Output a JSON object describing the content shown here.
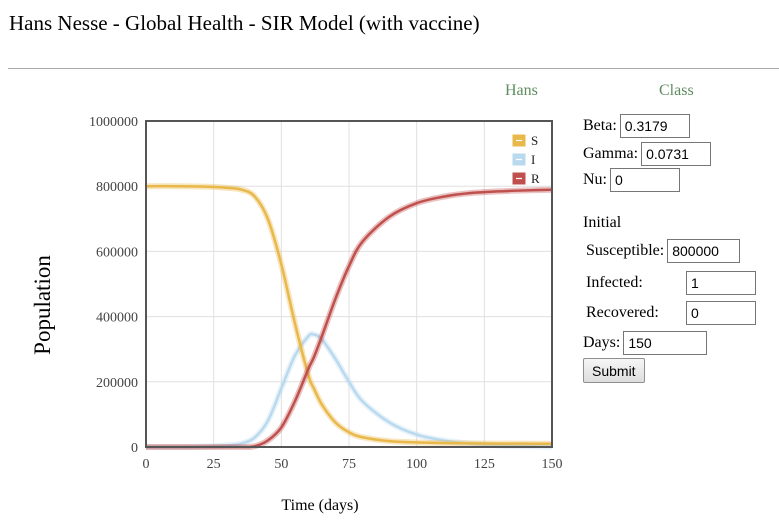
{
  "page": {
    "title": "Hans Nesse - Global Health - SIR Model (with vaccine)"
  },
  "tabs": {
    "hans": "Hans",
    "class": "Class"
  },
  "form": {
    "beta_label": "Beta:",
    "beta_value": "0.3179",
    "gamma_label": "Gamma:",
    "gamma_value": "0.0731",
    "nu_label": "Nu:",
    "nu_value": "0",
    "initial_heading": "Initial",
    "susceptible_label": "Susceptible:",
    "susceptible_value": "800000",
    "infected_label": "Infected:",
    "infected_value": "1",
    "recovered_label": "Recovered:",
    "recovered_value": "0",
    "days_label": "Days:",
    "days_value": "150",
    "submit_label": "Submit"
  },
  "colors": {
    "S": "#e8b84a",
    "I": "#b9d9ef",
    "R": "#c0504d",
    "grid": "#e0e0e0",
    "axis": "#555555"
  },
  "chart_data": {
    "type": "line",
    "title": "",
    "xlabel": "Time (days)",
    "ylabel": "Population",
    "xlim": [
      0,
      150
    ],
    "ylim": [
      0,
      1000000
    ],
    "x_ticks": [
      "0",
      "25",
      "50",
      "75",
      "100",
      "125",
      "150"
    ],
    "y_ticks": [
      "0",
      "200000",
      "400000",
      "600000",
      "800000",
      "1000000"
    ],
    "grid": true,
    "legend_position": "top-right",
    "x": [
      0,
      10,
      20,
      30,
      35,
      40,
      45,
      50,
      55,
      60,
      62,
      65,
      70,
      75,
      80,
      90,
      100,
      110,
      120,
      130,
      140,
      150
    ],
    "series": [
      {
        "name": "S",
        "values": [
          800000,
          800000,
          799000,
          795000,
          790000,
          770000,
          700000,
          560000,
          380000,
          220000,
          180000,
          130000,
          75000,
          45000,
          30000,
          18000,
          14000,
          12000,
          11000,
          10500,
          10200,
          10000
        ]
      },
      {
        "name": "I",
        "values": [
          0,
          0,
          1000,
          5000,
          10000,
          28000,
          80000,
          180000,
          280000,
          340000,
          345000,
          330000,
          270000,
          200000,
          140000,
          75000,
          38000,
          20000,
          10000,
          5000,
          2500,
          1000
        ]
      },
      {
        "name": "R",
        "values": [
          0,
          0,
          0,
          0,
          0,
          2000,
          20000,
          60000,
          140000,
          240000,
          275000,
          340000,
          455000,
          555000,
          630000,
          707000,
          748000,
          768000,
          779000,
          784000,
          787000,
          789000
        ]
      }
    ]
  }
}
